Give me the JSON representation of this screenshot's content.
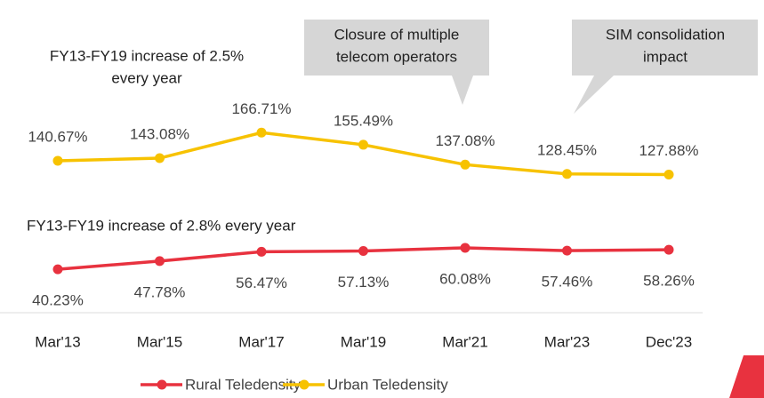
{
  "chart_data": {
    "type": "line",
    "categories": [
      "Mar'13",
      "Mar'15",
      "Mar'17",
      "Mar'19",
      "Mar'21",
      "Mar'23",
      "Dec'23"
    ],
    "series": [
      {
        "name": "Rural Teledensity",
        "color": "#e8323f",
        "values": [
          40.23,
          47.78,
          56.47,
          57.13,
          60.08,
          57.46,
          58.26
        ],
        "value_labels": [
          "40.23%",
          "47.78%",
          "56.47%",
          "57.13%",
          "60.08%",
          "57.46%",
          "58.26%"
        ]
      },
      {
        "name": "Urban Teledensity",
        "color": "#f7c200",
        "values": [
          140.67,
          143.08,
          166.71,
          155.49,
          137.08,
          128.45,
          127.88
        ],
        "value_labels": [
          "140.67%",
          "143.08%",
          "166.71%",
          "155.49%",
          "137.08%",
          "128.45%",
          "127.88%"
        ]
      }
    ],
    "ylim": [
      0,
      250
    ],
    "annotations": [
      {
        "text": [
          "FY13-FY19 increase of 2.5%",
          "every year"
        ]
      },
      {
        "text": [
          "FY13-FY19 increase of 2.8% every year"
        ]
      },
      {
        "text": [
          "Closure of multiple",
          "telecom operators"
        ]
      },
      {
        "text": [
          "SIM consolidation",
          "impact"
        ]
      }
    ]
  }
}
